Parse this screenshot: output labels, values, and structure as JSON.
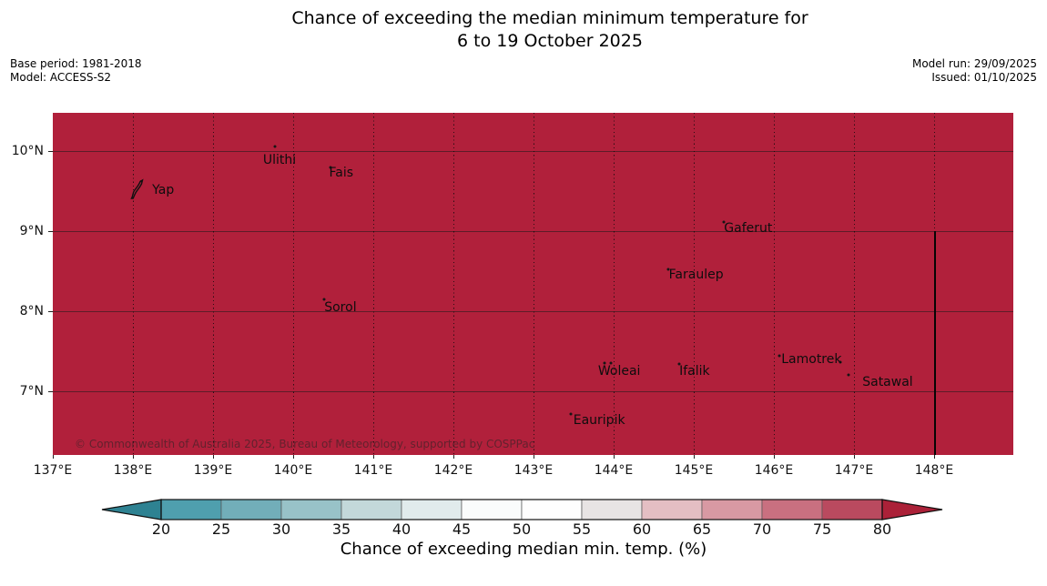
{
  "title": {
    "line1": "Chance of exceeding the median minimum temperature for",
    "line2": "6 to 19 October 2025"
  },
  "meta": {
    "base_period": "Base period: 1981-2018",
    "model": "Model: ACCESS-S2",
    "model_run": "Model run: 29/09/2025",
    "issued": "Issued: 01/10/2025"
  },
  "map": {
    "background_color": "#b1203b",
    "copyright": "© Commonwealth of Australia 2025, Bureau of Meteorology, supported by COSPPac",
    "extent": {
      "lon_min": 137,
      "lon_max": 148.99,
      "lat_min": 6.2,
      "lat_max": 10.48
    },
    "lat_gridlines": [
      10,
      9,
      8,
      7
    ],
    "lon_gridlines": [
      138,
      139,
      140,
      141,
      142,
      143,
      144,
      145,
      146,
      147,
      148
    ],
    "boundary_line": {
      "lon": 148,
      "lat_from": 9.0,
      "lat_to": 6.2
    },
    "islands": [
      {
        "label": "Yap",
        "label_lon": 138.24,
        "label_lat": 9.51,
        "label_align": "left",
        "shape": "yap",
        "shape_lon": 138.05,
        "shape_lat": 9.52,
        "markers": []
      },
      {
        "label": "Ulithi",
        "label_lon": 139.83,
        "label_lat": 9.89,
        "markers": [
          [
            139.77,
            10.06
          ]
        ]
      },
      {
        "label": "Fais",
        "label_lon": 140.6,
        "label_lat": 9.73,
        "markers": [
          [
            140.47,
            9.8
          ]
        ]
      },
      {
        "label": "Sorol",
        "label_lon": 140.59,
        "label_lat": 8.05,
        "markers": [
          [
            140.39,
            8.15
          ]
        ]
      },
      {
        "label": "Gaferut",
        "label_lon": 145.68,
        "label_lat": 9.03,
        "markers": [
          [
            145.38,
            9.11
          ]
        ]
      },
      {
        "label": "Faraulep",
        "label_lon": 145.03,
        "label_lat": 8.45,
        "markers": [
          [
            144.68,
            8.52
          ]
        ]
      },
      {
        "label": "Woleai",
        "label_lon": 144.07,
        "label_lat": 7.25,
        "markers": [
          [
            143.89,
            7.35
          ],
          [
            143.97,
            7.35
          ]
        ]
      },
      {
        "label": "Ifalik",
        "label_lon": 145.01,
        "label_lat": 7.25,
        "markers": [
          [
            144.82,
            7.34
          ]
        ]
      },
      {
        "label": "Lamotrek",
        "label_lon": 146.47,
        "label_lat": 7.4,
        "markers": [
          [
            146.07,
            7.44
          ],
          [
            146.83,
            7.36
          ]
        ]
      },
      {
        "label": "Satawal",
        "label_lon": 147.42,
        "label_lat": 7.11,
        "markers": [
          [
            146.93,
            7.2
          ]
        ]
      },
      {
        "label": "Eauripik",
        "label_lon": 143.82,
        "label_lat": 6.64,
        "markers": [
          [
            143.47,
            6.72
          ]
        ]
      }
    ]
  },
  "x_axis": {
    "ticks": [
      {
        "lon": 137,
        "label": "137°E"
      },
      {
        "lon": 138,
        "label": "138°E"
      },
      {
        "lon": 139,
        "label": "139°E"
      },
      {
        "lon": 140,
        "label": "140°E"
      },
      {
        "lon": 141,
        "label": "141°E"
      },
      {
        "lon": 142,
        "label": "142°E"
      },
      {
        "lon": 143,
        "label": "143°E"
      },
      {
        "lon": 144,
        "label": "144°E"
      },
      {
        "lon": 145,
        "label": "145°E"
      },
      {
        "lon": 146,
        "label": "146°E"
      },
      {
        "lon": 147,
        "label": "147°E"
      },
      {
        "lon": 148,
        "label": "148°E"
      }
    ]
  },
  "y_axis": {
    "ticks": [
      {
        "lat": 10,
        "label": "10°N"
      },
      {
        "lat": 9,
        "label": "9°N"
      },
      {
        "lat": 8,
        "label": "8°N"
      },
      {
        "lat": 7,
        "label": "7°N"
      }
    ]
  },
  "colorbar": {
    "label": "Chance of exceeding median min. temp. (%)",
    "tick_labels": [
      "20",
      "25",
      "30",
      "35",
      "40",
      "45",
      "50",
      "55",
      "60",
      "65",
      "70",
      "75",
      "80"
    ],
    "segment_colors": [
      "#4f9fae",
      "#72aeb9",
      "#98c2c8",
      "#c3d8da",
      "#e1ebec",
      "#fafcfc",
      "#fefefe",
      "#e8e4e4",
      "#e4bec3",
      "#d899a3",
      "#c97080",
      "#ba4a5f"
    ],
    "under_arrow_color": "#2e8292",
    "over_arrow_color": "#ab2138",
    "outline_color": "#111111"
  },
  "chart_data": {
    "type": "heatmap",
    "title": "Chance of exceeding the median minimum temperature for 6 to 19 October 2025",
    "colorbar_label": "Chance of exceeding median min. temp. (%)",
    "colorbar_ticks": [
      20,
      25,
      30,
      35,
      40,
      45,
      50,
      55,
      60,
      65,
      70,
      75,
      80
    ],
    "colorbar_range_shown": [
      20,
      80
    ],
    "map_extent_lon": [
      137,
      149
    ],
    "map_extent_lat": [
      6.2,
      10.5
    ],
    "field_description": "Uniform value above 80% (dark red over-color) across the entire mapped region",
    "islands": [
      "Yap",
      "Ulithi",
      "Fais",
      "Sorol",
      "Gaferut",
      "Faraulep",
      "Woleai",
      "Ifalik",
      "Lamotrek",
      "Satawal",
      "Eauripik"
    ]
  }
}
